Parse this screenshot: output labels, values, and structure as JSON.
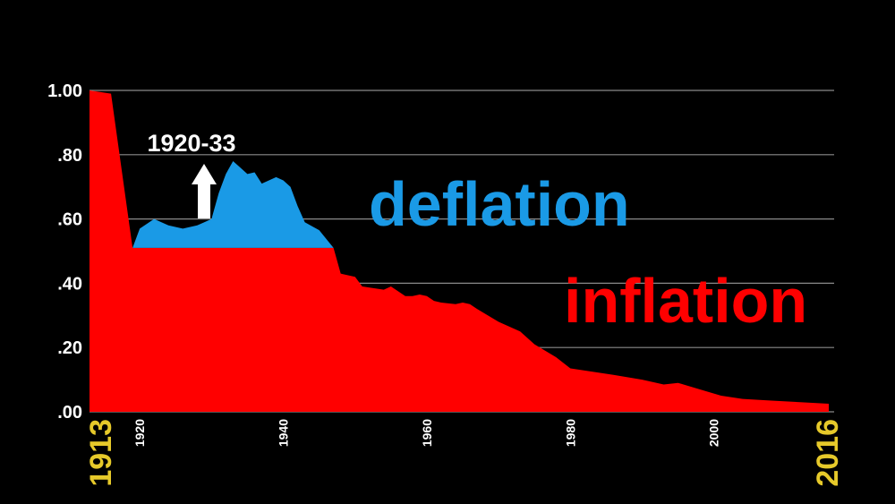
{
  "chart_data": {
    "type": "area",
    "title": "",
    "xlabel": "",
    "ylabel": "",
    "xlim": [
      1913,
      2016
    ],
    "ylim": [
      0,
      1
    ],
    "grid": true,
    "y_ticks": [
      {
        "value": 1.0,
        "label": "1.00"
      },
      {
        "value": 0.8,
        "label": ".80"
      },
      {
        "value": 0.6,
        "label": ".60"
      },
      {
        "value": 0.4,
        "label": ".40"
      },
      {
        "value": 0.2,
        "label": ".20"
      },
      {
        "value": 0.0,
        "label": ".00"
      }
    ],
    "x_ticks": [
      {
        "value": 1913,
        "label": "1913",
        "highlight": true
      },
      {
        "value": 1920,
        "label": "1920",
        "highlight": false
      },
      {
        "value": 1940,
        "label": "1940",
        "highlight": false
      },
      {
        "value": 1960,
        "label": "1960",
        "highlight": false
      },
      {
        "value": 1980,
        "label": "1980",
        "highlight": false
      },
      {
        "value": 2000,
        "label": "2000",
        "highlight": false
      },
      {
        "value": 2016,
        "label": "2016",
        "highlight": true
      }
    ],
    "series": [
      {
        "color": "#ff0000",
        "x": [
          1913,
          1916,
          1919,
          1947,
          1948,
          1950,
          1951,
          1954,
          1955,
          1957,
          1958,
          1959,
          1960,
          1961,
          1962,
          1964,
          1965,
          1966,
          1967,
          1970,
          1973,
          1975,
          1978,
          1980,
          1983,
          1986,
          1990,
          1993,
          1995,
          1998,
          2001,
          2004,
          2008,
          2012,
          2016
        ],
        "values": [
          1.0,
          0.99,
          0.51,
          0.51,
          0.43,
          0.42,
          0.39,
          0.38,
          0.39,
          0.36,
          0.36,
          0.365,
          0.36,
          0.345,
          0.34,
          0.335,
          0.34,
          0.335,
          0.32,
          0.28,
          0.25,
          0.21,
          0.17,
          0.135,
          0.125,
          0.115,
          0.1,
          0.085,
          0.09,
          0.07,
          0.05,
          0.04,
          0.035,
          0.03,
          0.025
        ]
      },
      {
        "color": "#1a9ae6",
        "x": [
          1919,
          1920,
          1922,
          1924,
          1926,
          1928,
          1929,
          1930,
          1931,
          1932,
          1933,
          1934,
          1935,
          1936,
          1937,
          1938,
          1939,
          1940,
          1941,
          1942,
          1943,
          1945,
          1947
        ],
        "values": [
          0.51,
          0.57,
          0.6,
          0.58,
          0.57,
          0.58,
          0.59,
          0.6,
          0.68,
          0.74,
          0.78,
          0.76,
          0.74,
          0.745,
          0.71,
          0.72,
          0.73,
          0.72,
          0.7,
          0.64,
          0.59,
          0.565,
          0.51
        ]
      }
    ],
    "annotations": [
      {
        "text": "1920-33",
        "x": 1926,
        "y": 0.84
      }
    ],
    "labels": {
      "deflation": {
        "text": "deflation",
        "color": "#1a9ae6"
      },
      "inflation": {
        "text": "inflation",
        "color": "#ff0000"
      }
    }
  }
}
